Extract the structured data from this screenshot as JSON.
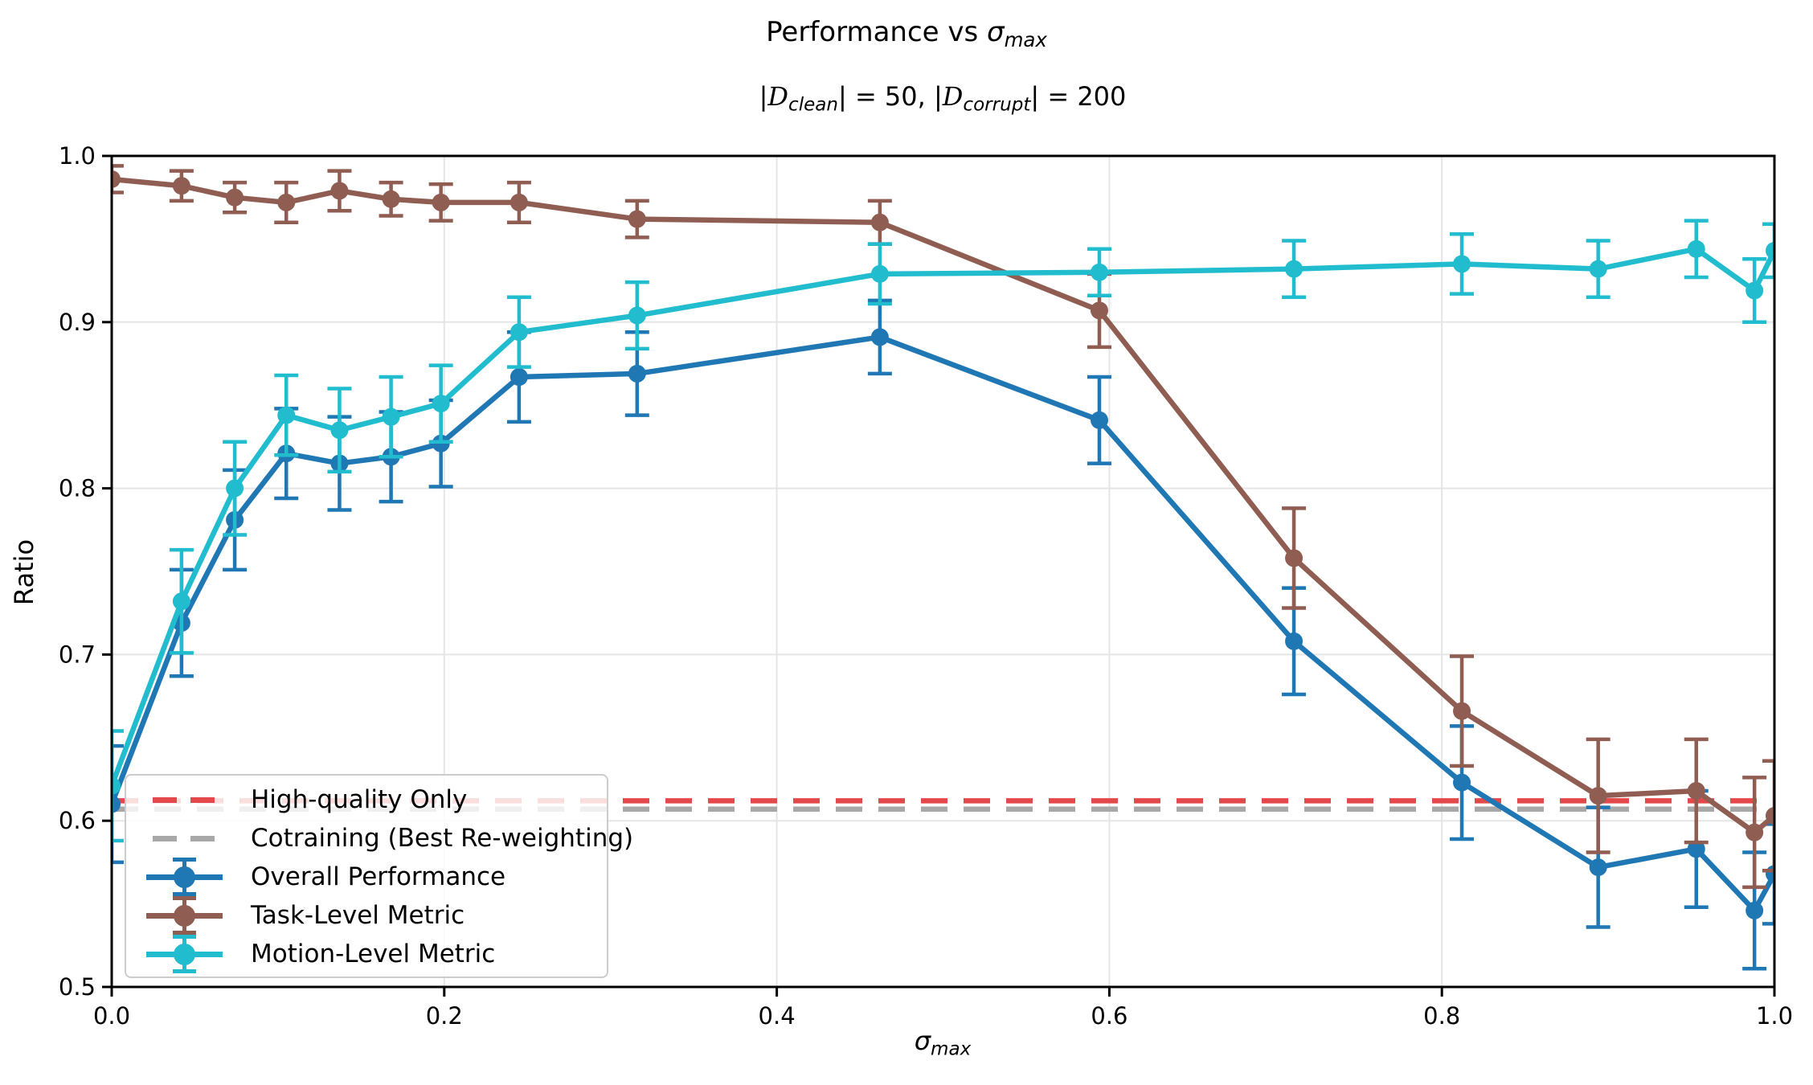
{
  "title": {
    "prefix": "Performance vs ",
    "symbol": "σ",
    "subscript": "max"
  },
  "subtitle": {
    "open": "|",
    "d1": "D",
    "sub1": "clean",
    "mid": "| = 50,  |",
    "d2": "D",
    "sub2": "corrupt",
    "close": "| = 200"
  },
  "chart_data": {
    "type": "line",
    "title": "Performance vs σ_max",
    "subtitle": "|D_clean| = 50, |D_corrupt| = 200",
    "xlabel": "σ_max",
    "ylabel": "Ratio",
    "xlim": [
      0.0,
      1.0
    ],
    "ylim": [
      0.5,
      1.0
    ],
    "grid": true,
    "legend_position": "lower left",
    "xticks": {
      "values": [
        0.0,
        0.2,
        0.4,
        0.6,
        0.8,
        1.0
      ],
      "labels": [
        "0.0",
        "0.2",
        "0.4",
        "0.6",
        "0.8",
        "1.0"
      ]
    },
    "yticks": {
      "values": [
        0.5,
        0.6,
        0.7,
        0.8,
        0.9,
        1.0
      ],
      "labels": [
        "0.5",
        "0.6",
        "0.7",
        "0.8",
        "0.9",
        "1.0"
      ]
    },
    "x": [
      0.0,
      0.042,
      0.074,
      0.105,
      0.137,
      0.168,
      0.198,
      0.245,
      0.316,
      0.462,
      0.594,
      0.711,
      0.812,
      0.894,
      0.953,
      0.988,
      1.0
    ],
    "series": [
      {
        "name": "Overall Performance",
        "color": "#1f77b4",
        "marker": "circle",
        "values": [
          0.61,
          0.719,
          0.781,
          0.821,
          0.815,
          0.819,
          0.827,
          0.867,
          0.869,
          0.891,
          0.841,
          0.708,
          0.623,
          0.572,
          0.583,
          0.546,
          0.568
        ],
        "errors": [
          0.035,
          0.032,
          0.03,
          0.027,
          0.028,
          0.027,
          0.026,
          0.027,
          0.025,
          0.022,
          0.026,
          0.032,
          0.034,
          0.036,
          0.035,
          0.035,
          0.03
        ]
      },
      {
        "name": "Task-Level Metric",
        "color": "#8f5d52",
        "marker": "circle",
        "values": [
          0.986,
          0.982,
          0.975,
          0.972,
          0.979,
          0.974,
          0.972,
          0.972,
          0.962,
          0.96,
          0.907,
          0.758,
          0.666,
          0.615,
          0.618,
          0.593,
          0.603
        ],
        "errors": [
          0.008,
          0.009,
          0.009,
          0.012,
          0.012,
          0.01,
          0.011,
          0.012,
          0.011,
          0.013,
          0.022,
          0.03,
          0.033,
          0.034,
          0.031,
          0.033,
          0.033
        ]
      },
      {
        "name": "Motion-Level Metric",
        "color": "#21bcce",
        "marker": "circle",
        "values": [
          0.621,
          0.732,
          0.8,
          0.844,
          0.835,
          0.843,
          0.851,
          0.894,
          0.904,
          0.929,
          0.93,
          0.932,
          0.935,
          0.932,
          0.944,
          0.919,
          0.943
        ],
        "errors": [
          0.033,
          0.031,
          0.028,
          0.024,
          0.025,
          0.024,
          0.023,
          0.021,
          0.02,
          0.018,
          0.014,
          0.017,
          0.018,
          0.017,
          0.017,
          0.019,
          0.016
        ]
      }
    ],
    "hlines": [
      {
        "name": "Cotraining (Best Re-weighting)",
        "y": 0.607,
        "color": "#a8a8a8",
        "style": "dashed"
      },
      {
        "name": "High-quality Only",
        "y": 0.612,
        "color": "#e3484b",
        "style": "dashed"
      }
    ],
    "legend": {
      "items": [
        {
          "label": "High-quality Only",
          "type": "dash",
          "color": "#e3484b"
        },
        {
          "label": "Cotraining (Best Re-weighting)",
          "type": "dash",
          "color": "#a8a8a8"
        },
        {
          "label": "Overall Performance",
          "type": "errorbar",
          "color": "#1f77b4"
        },
        {
          "label": "Task-Level Metric",
          "type": "errorbar",
          "color": "#8f5d52"
        },
        {
          "label": "Motion-Level Metric",
          "type": "errorbar",
          "color": "#21bcce"
        }
      ]
    },
    "style": {
      "grid_color": "#e5e5e5",
      "spine_color": "#000000",
      "line_width": 6.5,
      "marker_radius": 11,
      "cap_halfwidth": 15,
      "error_line_width": 4.5,
      "dash_pattern": [
        33,
        20
      ],
      "tick_len": 12,
      "tick_font_px": 29
    }
  }
}
